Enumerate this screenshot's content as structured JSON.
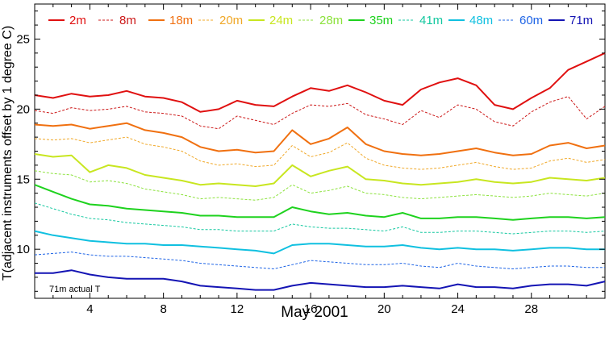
{
  "chart_data": {
    "type": "line",
    "xlabel": "May 2001",
    "ylabel": "T(adjacent instruments offset by 1 degree C)",
    "xlim": [
      1,
      32
    ],
    "ylim": [
      6.5,
      27.5
    ],
    "x_ticks": [
      4,
      8,
      12,
      16,
      20,
      24,
      28
    ],
    "y_ticks": [
      10,
      15,
      20,
      25
    ],
    "grid": false,
    "legend_position": "top",
    "annotation": "71m actual T",
    "series": [
      {
        "name": "2m",
        "color": "#e01010",
        "dash": "solid",
        "width": 2,
        "x": [
          1,
          2,
          3,
          4,
          5,
          6,
          7,
          8,
          9,
          10,
          11,
          12,
          13,
          14,
          15,
          16,
          17,
          18,
          19,
          20,
          21,
          22,
          23,
          24,
          25,
          26,
          27,
          28,
          29,
          30,
          31,
          32
        ],
        "y": [
          21.0,
          20.8,
          21.1,
          20.9,
          21.0,
          21.3,
          20.9,
          20.8,
          20.5,
          19.8,
          20.0,
          20.6,
          20.3,
          20.2,
          20.9,
          21.5,
          21.3,
          21.7,
          21.2,
          20.6,
          20.3,
          21.4,
          21.9,
          22.2,
          21.7,
          20.3,
          20.0,
          20.8,
          21.5,
          22.8,
          23.4,
          24.0
        ]
      },
      {
        "name": "8m",
        "color": "#cc1818",
        "dash": "3,2",
        "width": 1,
        "x": [
          1,
          2,
          3,
          4,
          5,
          6,
          7,
          8,
          9,
          10,
          11,
          12,
          13,
          14,
          15,
          16,
          17,
          18,
          19,
          20,
          21,
          22,
          23,
          24,
          25,
          26,
          27,
          28,
          29,
          30,
          31,
          32
        ],
        "y": [
          19.9,
          19.7,
          20.1,
          19.9,
          20.0,
          20.2,
          19.8,
          19.7,
          19.5,
          18.8,
          18.6,
          19.5,
          19.2,
          18.9,
          19.7,
          20.3,
          20.2,
          20.4,
          19.6,
          19.3,
          18.9,
          19.9,
          19.4,
          20.3,
          20.0,
          19.1,
          18.8,
          19.8,
          20.5,
          20.9,
          19.3,
          20.2
        ]
      },
      {
        "name": "18m",
        "color": "#f07010",
        "dash": "solid",
        "width": 2,
        "x": [
          1,
          2,
          3,
          4,
          5,
          6,
          7,
          8,
          9,
          10,
          11,
          12,
          13,
          14,
          15,
          16,
          17,
          18,
          19,
          20,
          21,
          22,
          23,
          24,
          25,
          26,
          27,
          28,
          29,
          30,
          31,
          32
        ],
        "y": [
          18.9,
          18.8,
          18.9,
          18.6,
          18.8,
          19.0,
          18.5,
          18.3,
          18.0,
          17.3,
          17.0,
          17.1,
          16.9,
          17.0,
          18.5,
          17.5,
          17.9,
          18.7,
          17.5,
          17.0,
          16.8,
          16.7,
          16.8,
          17.0,
          17.2,
          16.9,
          16.7,
          16.8,
          17.4,
          17.6,
          17.2,
          17.4
        ]
      },
      {
        "name": "20m",
        "color": "#f0a828",
        "dash": "3,2",
        "width": 1,
        "x": [
          1,
          2,
          3,
          4,
          5,
          6,
          7,
          8,
          9,
          10,
          11,
          12,
          13,
          14,
          15,
          16,
          17,
          18,
          19,
          20,
          21,
          22,
          23,
          24,
          25,
          26,
          27,
          28,
          29,
          30,
          31,
          32
        ],
        "y": [
          17.9,
          17.8,
          17.9,
          17.6,
          17.8,
          18.0,
          17.5,
          17.3,
          17.0,
          16.3,
          16.0,
          16.1,
          15.9,
          16.0,
          17.4,
          16.6,
          16.9,
          17.6,
          16.5,
          16.0,
          15.8,
          15.7,
          15.8,
          16.0,
          16.2,
          15.9,
          15.7,
          15.8,
          16.3,
          16.5,
          16.2,
          16.4
        ]
      },
      {
        "name": "24m",
        "color": "#c8e620",
        "dash": "solid",
        "width": 2,
        "x": [
          1,
          2,
          3,
          4,
          5,
          6,
          7,
          8,
          9,
          10,
          11,
          12,
          13,
          14,
          15,
          16,
          17,
          18,
          19,
          20,
          21,
          22,
          23,
          24,
          25,
          26,
          27,
          28,
          29,
          30,
          31,
          32
        ],
        "y": [
          16.8,
          16.6,
          16.7,
          15.5,
          16.0,
          15.8,
          15.3,
          15.1,
          14.9,
          14.6,
          14.7,
          14.6,
          14.5,
          14.7,
          16.0,
          15.2,
          15.6,
          15.9,
          15.0,
          14.9,
          14.7,
          14.6,
          14.7,
          14.8,
          15.0,
          14.8,
          14.7,
          14.8,
          15.1,
          15.0,
          14.9,
          15.1
        ]
      },
      {
        "name": "28m",
        "color": "#8ce23c",
        "dash": "3,2",
        "width": 1,
        "x": [
          1,
          2,
          3,
          4,
          5,
          6,
          7,
          8,
          9,
          10,
          11,
          12,
          13,
          14,
          15,
          16,
          17,
          18,
          19,
          20,
          21,
          22,
          23,
          24,
          25,
          26,
          27,
          28,
          29,
          30,
          31,
          32
        ],
        "y": [
          15.6,
          15.4,
          15.3,
          14.8,
          14.9,
          14.7,
          14.3,
          14.1,
          13.9,
          13.6,
          13.7,
          13.6,
          13.5,
          13.7,
          14.6,
          14.0,
          14.2,
          14.5,
          14.0,
          13.9,
          13.7,
          13.6,
          13.7,
          13.8,
          13.9,
          13.8,
          13.7,
          13.8,
          14.0,
          13.9,
          13.8,
          14.0
        ]
      },
      {
        "name": "35m",
        "color": "#1ed21e",
        "dash": "solid",
        "width": 2,
        "x": [
          1,
          2,
          3,
          4,
          5,
          6,
          7,
          8,
          9,
          10,
          11,
          12,
          13,
          14,
          15,
          16,
          17,
          18,
          19,
          20,
          21,
          22,
          23,
          24,
          25,
          26,
          27,
          28,
          29,
          30,
          31,
          32
        ],
        "y": [
          14.6,
          14.1,
          13.6,
          13.2,
          13.1,
          12.9,
          12.8,
          12.7,
          12.6,
          12.4,
          12.4,
          12.3,
          12.3,
          12.3,
          13.0,
          12.7,
          12.5,
          12.6,
          12.4,
          12.3,
          12.6,
          12.2,
          12.2,
          12.3,
          12.3,
          12.2,
          12.1,
          12.2,
          12.3,
          12.3,
          12.2,
          12.3
        ]
      },
      {
        "name": "41m",
        "color": "#14c8a0",
        "dash": "3,2",
        "width": 1,
        "x": [
          1,
          2,
          3,
          4,
          5,
          6,
          7,
          8,
          9,
          10,
          11,
          12,
          13,
          14,
          15,
          16,
          17,
          18,
          19,
          20,
          21,
          22,
          23,
          24,
          25,
          26,
          27,
          28,
          29,
          30,
          31,
          32
        ],
        "y": [
          13.3,
          12.9,
          12.5,
          12.2,
          12.1,
          11.9,
          11.8,
          11.7,
          11.6,
          11.4,
          11.4,
          11.3,
          11.3,
          11.3,
          11.8,
          11.6,
          11.5,
          11.5,
          11.4,
          11.3,
          11.6,
          11.2,
          11.2,
          11.3,
          11.3,
          11.2,
          11.1,
          11.2,
          11.3,
          11.3,
          11.2,
          11.3
        ]
      },
      {
        "name": "48m",
        "color": "#10c0e0",
        "dash": "solid",
        "width": 2,
        "x": [
          1,
          2,
          3,
          4,
          5,
          6,
          7,
          8,
          9,
          10,
          11,
          12,
          13,
          14,
          15,
          16,
          17,
          18,
          19,
          20,
          21,
          22,
          23,
          24,
          25,
          26,
          27,
          28,
          29,
          30,
          31,
          32
        ],
        "y": [
          11.3,
          11.0,
          10.8,
          10.6,
          10.5,
          10.4,
          10.4,
          10.3,
          10.3,
          10.2,
          10.1,
          10.0,
          9.9,
          9.7,
          10.3,
          10.4,
          10.4,
          10.3,
          10.2,
          10.2,
          10.3,
          10.1,
          10.0,
          10.1,
          10.0,
          10.0,
          9.9,
          10.0,
          10.1,
          10.1,
          10.0,
          10.0
        ]
      },
      {
        "name": "60m",
        "color": "#1e64e6",
        "dash": "3,2",
        "width": 1,
        "x": [
          1,
          2,
          3,
          4,
          5,
          6,
          7,
          8,
          9,
          10,
          11,
          12,
          13,
          14,
          15,
          16,
          17,
          18,
          19,
          20,
          21,
          22,
          23,
          24,
          25,
          26,
          27,
          28,
          29,
          30,
          31,
          32
        ],
        "y": [
          9.6,
          9.7,
          9.8,
          9.6,
          9.5,
          9.5,
          9.4,
          9.3,
          9.2,
          9.0,
          8.9,
          8.8,
          8.7,
          8.6,
          8.9,
          9.2,
          9.1,
          9.0,
          8.9,
          8.9,
          9.0,
          8.8,
          8.7,
          9.0,
          8.8,
          8.7,
          8.6,
          8.7,
          8.8,
          8.8,
          8.7,
          8.7
        ]
      },
      {
        "name": "71m",
        "color": "#1414b4",
        "dash": "solid",
        "width": 2,
        "x": [
          1,
          2,
          3,
          4,
          5,
          6,
          7,
          8,
          9,
          10,
          11,
          12,
          13,
          14,
          15,
          16,
          17,
          18,
          19,
          20,
          21,
          22,
          23,
          24,
          25,
          26,
          27,
          28,
          29,
          30,
          31,
          32
        ],
        "y": [
          8.3,
          8.3,
          8.5,
          8.2,
          8.0,
          7.9,
          7.9,
          7.9,
          7.7,
          7.4,
          7.3,
          7.2,
          7.1,
          7.1,
          7.4,
          7.6,
          7.5,
          7.4,
          7.3,
          7.3,
          7.4,
          7.3,
          7.2,
          7.5,
          7.3,
          7.3,
          7.2,
          7.4,
          7.5,
          7.5,
          7.4,
          7.7
        ]
      }
    ]
  }
}
